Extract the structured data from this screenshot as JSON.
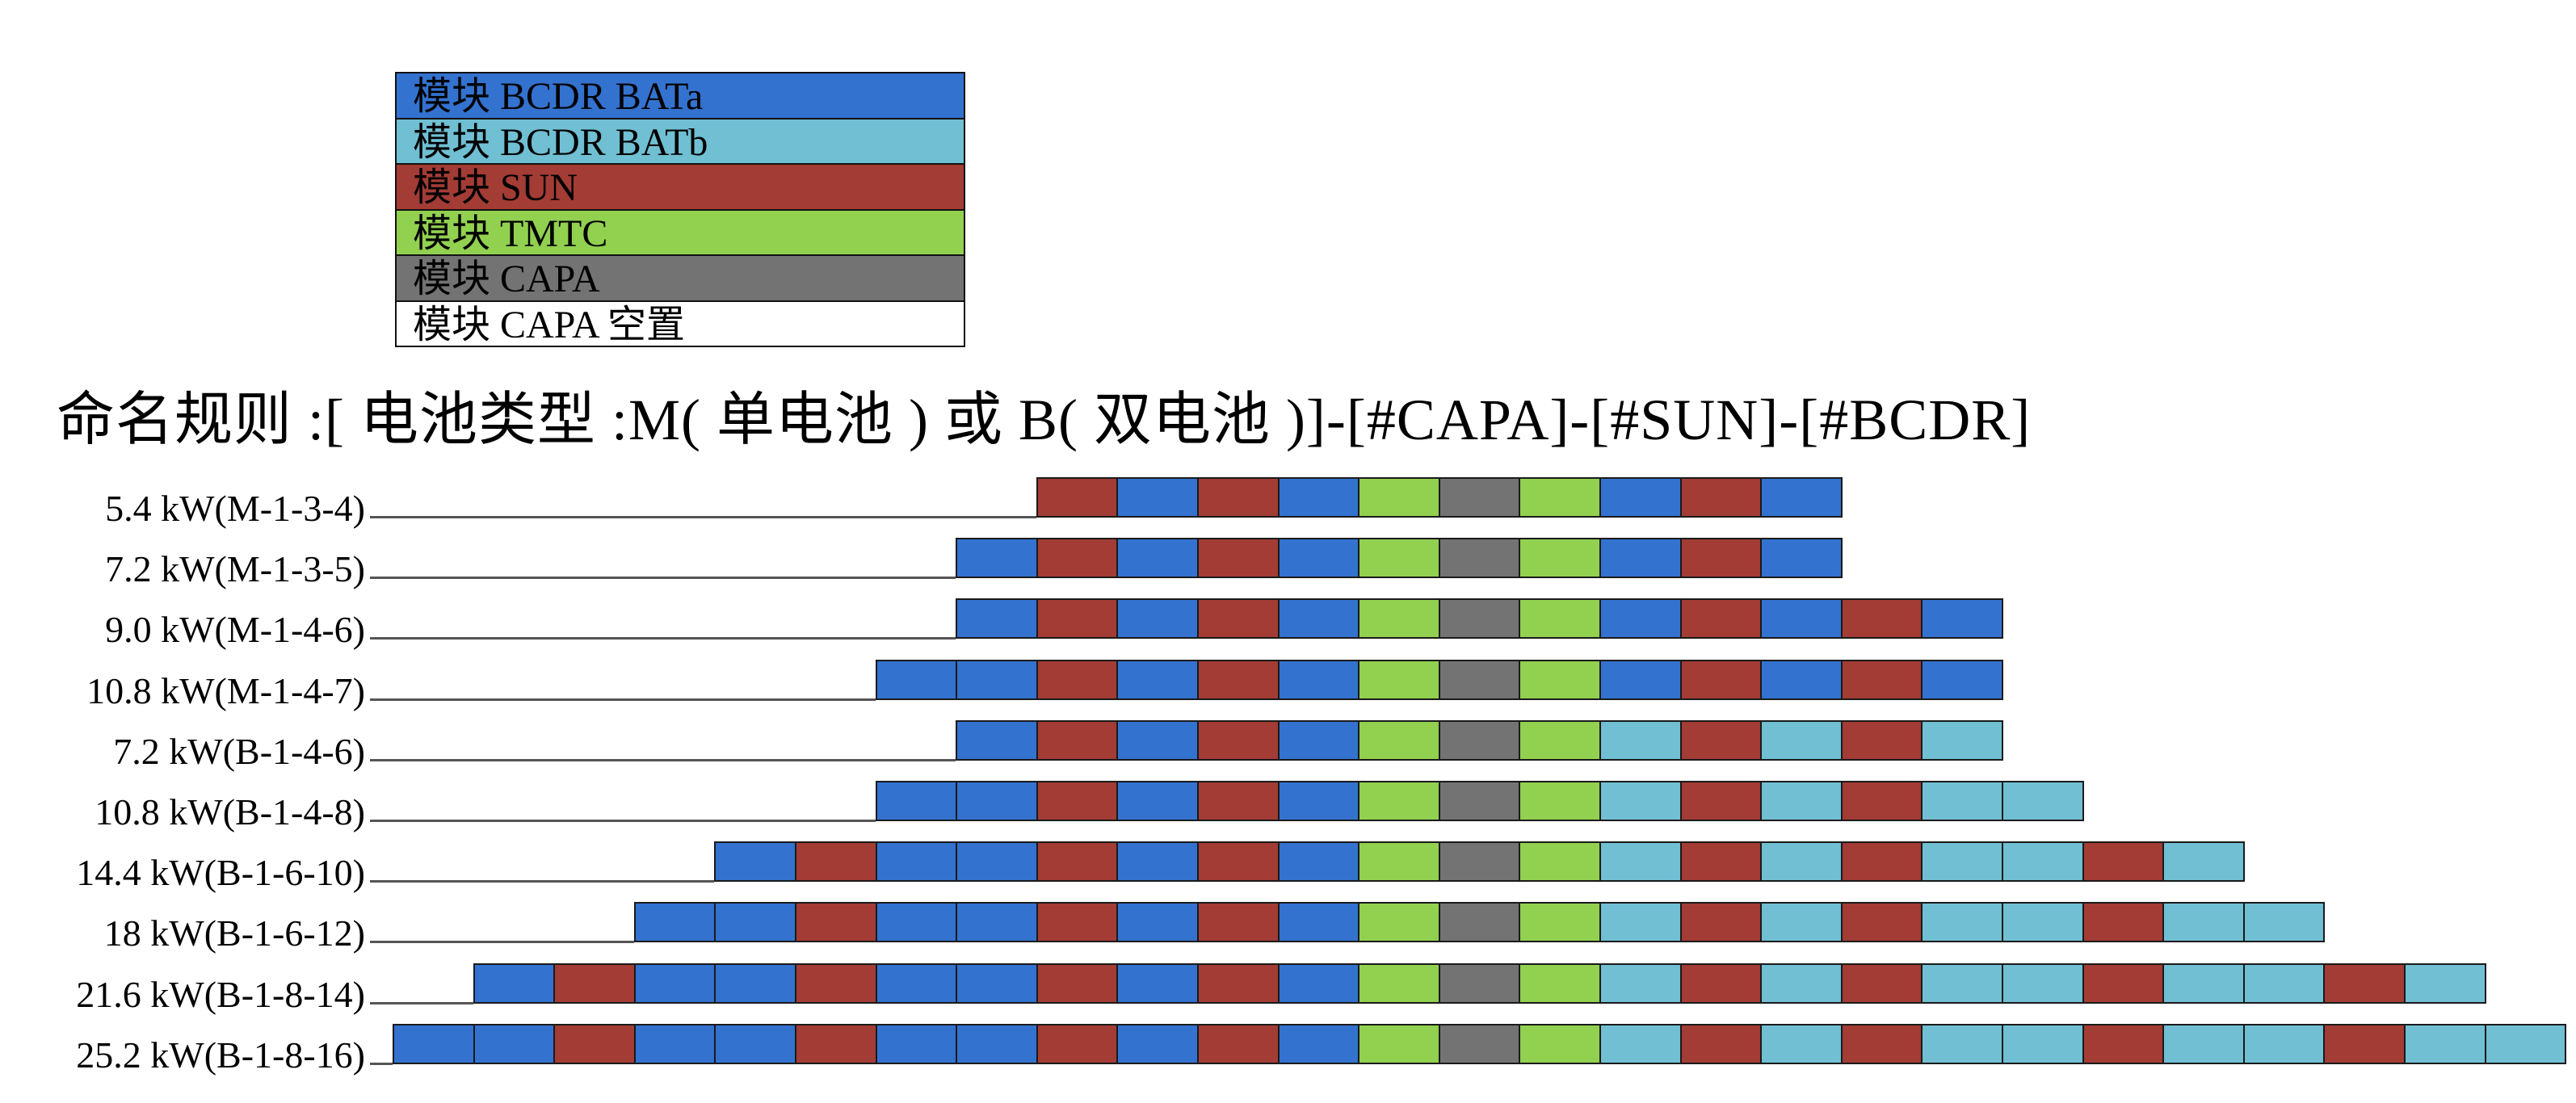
{
  "legend": [
    {
      "label": "模块 BCDR BATa",
      "color": "#3372CF"
    },
    {
      "label": "模块 BCDR BATb",
      "color": "#70BFD3"
    },
    {
      "label": "模块 SUN",
      "color": "#A23C35"
    },
    {
      "label": "模块 TMTC",
      "color": "#92D050"
    },
    {
      "label": "模块 CAPA",
      "color": "#737373"
    },
    {
      "label": "模块 CAPA 空置",
      "color": "#FFFFFF"
    }
  ],
  "title": "命名规则 :[ 电池类型 :M( 单电池 ) 或 B( 双电池 )]-[#CAPA]-[#SUN]-[#BCDR]",
  "rows": [
    {
      "label": "5.4 kW(M-1-3-4)",
      "start": 8,
      "blocks": "SASAGCGASA"
    },
    {
      "label": "7.2 kW(M-1-3-5)",
      "start": 7,
      "blocks": "ASASAGCGASA"
    },
    {
      "label": "9.0 kW(M-1-4-6)",
      "start": 7,
      "blocks": "ASASAGCGASASA"
    },
    {
      "label": "10.8 kW(M-1-4-7)",
      "start": 6,
      "blocks": "AASASAGCGASASA"
    },
    {
      "label": "7.2 kW(B-1-4-6)",
      "start": 7,
      "blocks": "ASASAGCGBSBSB"
    },
    {
      "label": "10.8 kW(B-1-4-8)",
      "start": 6,
      "blocks": "AASASAGCGBSBSBB"
    },
    {
      "label": "14.4 kW(B-1-6-10)",
      "start": 4,
      "blocks": "ASAASASAGCGBSBSBBSB"
    },
    {
      "label": "18 kW(B-1-6-12)",
      "start": 3,
      "blocks": "AASAASASAGCGBSBSBBSBB"
    },
    {
      "label": "21.6 kW(B-1-8-14)",
      "start": 1,
      "blocks": "ASAASAASASAGCGBSBSBBSBBSB"
    },
    {
      "label": "25.2 kW(B-1-8-16)",
      "start": 0,
      "blocks": "AASAASAASASAGCGBSBSBBSBBSBB"
    }
  ]
}
